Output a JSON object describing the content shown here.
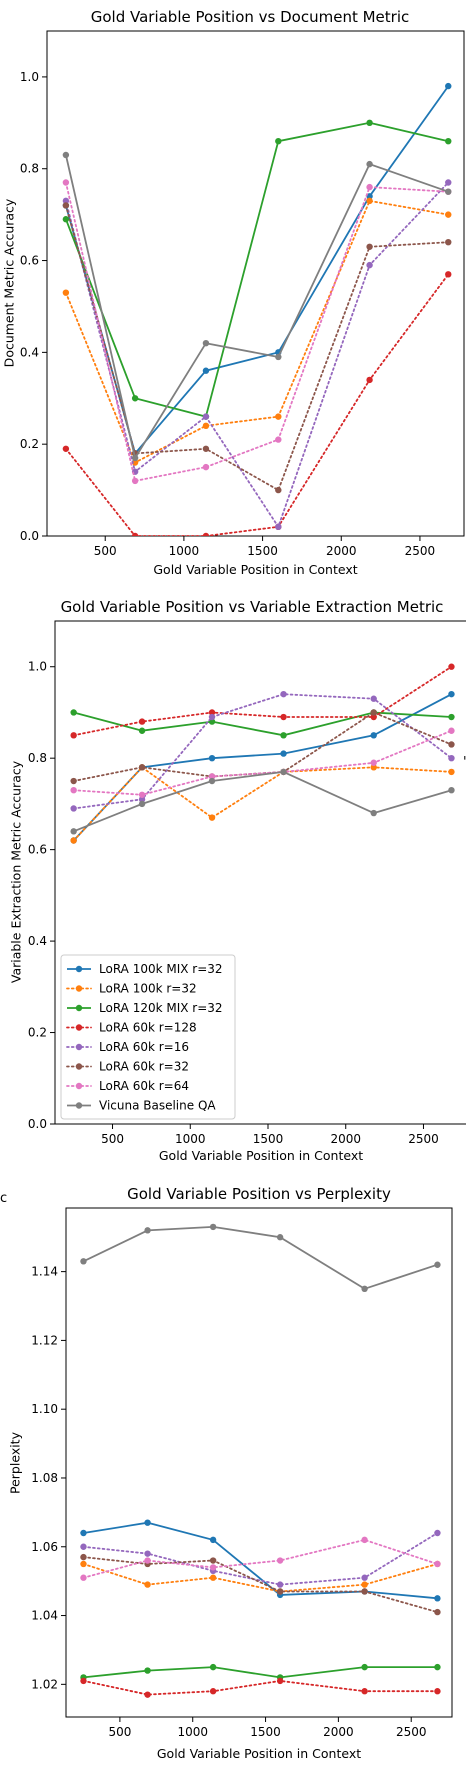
{
  "palette": {
    "lora100k_mix_r32": "#1f77b4",
    "lora100k_r32": "#ff7f0e",
    "lora120k_mix_r32": "#2ca02c",
    "lora60k_r128": "#d62728",
    "lora60k_r16": "#9467bd",
    "lora60k_r32": "#8c564b",
    "lora60k_r64": "#e377c2",
    "vicuna": "#7f7f7f"
  },
  "stray_text": {
    "left_label_1": "c",
    "right_mark_1": "'"
  },
  "chart_data": [
    {
      "type": "line",
      "title": "Gold Variable Position vs Document Metric",
      "xlabel": "Gold Variable Position in Context",
      "ylabel": "Document Metric Accuracy",
      "xlim": [
        130,
        2780
      ],
      "ylim": [
        0.0,
        1.1
      ],
      "xticks": [
        500,
        1000,
        1500,
        2000,
        2500
      ],
      "yticks": [
        0.0,
        0.2,
        0.4,
        0.6,
        0.8,
        1.0
      ],
      "ytick_labels": [
        "0.0",
        "0.2",
        "0.4",
        "0.6",
        "0.8",
        "1.0"
      ],
      "x": [
        250,
        690,
        1140,
        1600,
        2180,
        2680
      ],
      "series": [
        {
          "name": "LoRA 100k MIX r=32",
          "color": "#1f77b4",
          "style": "solid",
          "values": [
            0.72,
            0.18,
            0.36,
            0.4,
            0.74,
            0.98
          ]
        },
        {
          "name": "LoRA 100k r=32",
          "color": "#ff7f0e",
          "style": "dotted",
          "values": [
            0.53,
            0.16,
            0.24,
            0.26,
            0.73,
            0.7
          ]
        },
        {
          "name": "LoRA 120k MIX r=32",
          "color": "#2ca02c",
          "style": "solid",
          "values": [
            0.69,
            0.3,
            0.26,
            0.86,
            0.9,
            0.86
          ]
        },
        {
          "name": "LoRA 60k r=128",
          "color": "#d62728",
          "style": "dotted",
          "values": [
            0.19,
            0.0,
            0.0,
            0.02,
            0.34,
            0.57
          ]
        },
        {
          "name": "LoRA 60k r=16",
          "color": "#9467bd",
          "style": "dotted",
          "values": [
            0.73,
            0.14,
            0.26,
            0.02,
            0.59,
            0.77
          ]
        },
        {
          "name": "LoRA 60k r=32",
          "color": "#8c564b",
          "style": "dotted",
          "values": [
            0.72,
            0.18,
            0.19,
            0.1,
            0.63,
            0.64
          ]
        },
        {
          "name": "LoRA 60k r=64",
          "color": "#e377c2",
          "style": "dotted",
          "values": [
            0.77,
            0.12,
            0.15,
            0.21,
            0.76,
            0.75
          ]
        },
        {
          "name": "Vicuna Baseline QA",
          "color": "#7f7f7f",
          "style": "solid",
          "values": [
            0.83,
            0.17,
            0.42,
            0.39,
            0.81,
            0.75
          ]
        }
      ],
      "legend": null
    },
    {
      "type": "line",
      "title": "Gold Variable Position vs Variable Extraction Metric",
      "xlabel": "Gold Variable Position in Context",
      "ylabel": "Variable Extraction Metric Accuracy",
      "xlim": [
        130,
        2780
      ],
      "ylim": [
        0.0,
        1.1
      ],
      "xticks": [
        500,
        1000,
        1500,
        2000,
        2500
      ],
      "yticks": [
        0.0,
        0.2,
        0.4,
        0.6,
        0.8,
        1.0
      ],
      "ytick_labels": [
        "0.0",
        "0.2",
        "0.4",
        "0.6",
        "0.8",
        "1.0"
      ],
      "x": [
        250,
        690,
        1140,
        1600,
        2180,
        2680
      ],
      "series": [
        {
          "name": "LoRA 100k MIX r=32",
          "color": "#1f77b4",
          "style": "solid",
          "values": [
            0.62,
            0.78,
            0.8,
            0.81,
            0.85,
            0.94
          ]
        },
        {
          "name": "LoRA 100k r=32",
          "color": "#ff7f0e",
          "style": "dotted",
          "values": [
            0.62,
            0.78,
            0.67,
            0.77,
            0.78,
            0.77
          ]
        },
        {
          "name": "LoRA 120k MIX r=32",
          "color": "#2ca02c",
          "style": "solid",
          "values": [
            0.9,
            0.86,
            0.88,
            0.85,
            0.9,
            0.89
          ]
        },
        {
          "name": "LoRA 60k r=128",
          "color": "#d62728",
          "style": "dotted",
          "values": [
            0.85,
            0.88,
            0.9,
            0.89,
            0.89,
            1.0
          ]
        },
        {
          "name": "LoRA 60k r=16",
          "color": "#9467bd",
          "style": "dotted",
          "values": [
            0.69,
            0.71,
            0.89,
            0.94,
            0.93,
            0.8
          ]
        },
        {
          "name": "LoRA 60k r=32",
          "color": "#8c564b",
          "style": "dotted",
          "values": [
            0.75,
            0.78,
            0.76,
            0.77,
            0.9,
            0.83
          ]
        },
        {
          "name": "LoRA 60k r=64",
          "color": "#e377c2",
          "style": "dotted",
          "values": [
            0.73,
            0.72,
            0.76,
            0.77,
            0.79,
            0.86
          ]
        },
        {
          "name": "Vicuna Baseline QA",
          "color": "#7f7f7f",
          "style": "solid",
          "values": [
            0.64,
            0.7,
            0.75,
            0.77,
            0.68,
            0.73
          ]
        }
      ],
      "legend": "lower-left"
    },
    {
      "type": "line",
      "title": "Gold Variable Position vs Perplexity",
      "xlabel": "Gold Variable Position in Context",
      "ylabel": "Perplexity",
      "xlim": [
        130,
        2780
      ],
      "ylim": [
        1.0105,
        1.1585
      ],
      "xticks": [
        500,
        1000,
        1500,
        2000,
        2500
      ],
      "yticks": [
        1.02,
        1.04,
        1.06,
        1.08,
        1.1,
        1.12,
        1.14
      ],
      "ytick_labels": [
        "1.02",
        "1.04",
        "1.06",
        "1.08",
        "1.10",
        "1.12",
        "1.14"
      ],
      "x": [
        250,
        690,
        1140,
        1600,
        2180,
        2680
      ],
      "series": [
        {
          "name": "LoRA 100k MIX r=32",
          "color": "#1f77b4",
          "style": "solid",
          "values": [
            1.064,
            1.067,
            1.062,
            1.046,
            1.047,
            1.045
          ]
        },
        {
          "name": "LoRA 100k r=32",
          "color": "#ff7f0e",
          "style": "dotted",
          "values": [
            1.055,
            1.049,
            1.051,
            1.047,
            1.049,
            1.055
          ]
        },
        {
          "name": "LoRA 120k MIX r=32",
          "color": "#2ca02c",
          "style": "solid",
          "values": [
            1.022,
            1.024,
            1.025,
            1.022,
            1.025,
            1.025
          ]
        },
        {
          "name": "LoRA 60k r=128",
          "color": "#d62728",
          "style": "dotted",
          "values": [
            1.021,
            1.017,
            1.018,
            1.021,
            1.018,
            1.018
          ]
        },
        {
          "name": "LoRA 60k r=16",
          "color": "#9467bd",
          "style": "dotted",
          "values": [
            1.06,
            1.058,
            1.053,
            1.049,
            1.051,
            1.064
          ]
        },
        {
          "name": "LoRA 60k r=32",
          "color": "#8c564b",
          "style": "dotted",
          "values": [
            1.057,
            1.055,
            1.056,
            1.047,
            1.047,
            1.041
          ]
        },
        {
          "name": "LoRA 60k r=64",
          "color": "#e377c2",
          "style": "dotted",
          "values": [
            1.051,
            1.056,
            1.054,
            1.056,
            1.062,
            1.055
          ]
        },
        {
          "name": "Vicuna Baseline QA",
          "color": "#7f7f7f",
          "style": "solid",
          "values": [
            1.143,
            1.152,
            1.153,
            1.15,
            1.135,
            1.142
          ]
        }
      ],
      "legend": null
    }
  ]
}
